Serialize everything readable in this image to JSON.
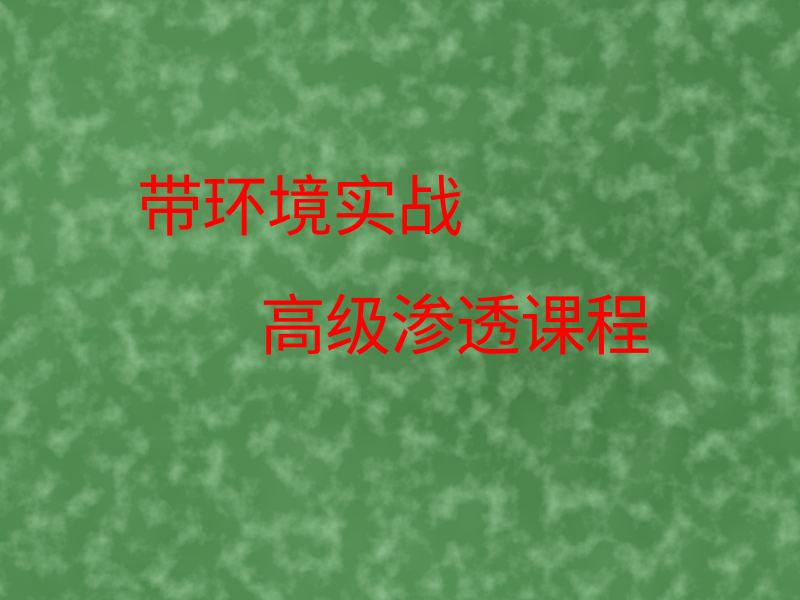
{
  "slide": {
    "background_color": "#4f8a4f",
    "text_color": "#ff0000",
    "title_line_1": "带环境实战",
    "title_line_2": "高级渗透课程"
  }
}
